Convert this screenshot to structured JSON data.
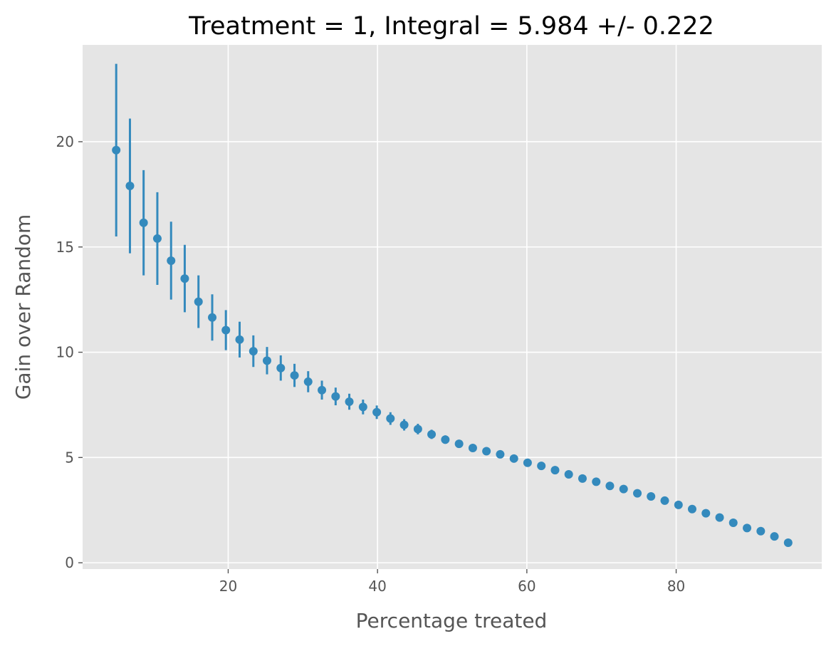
{
  "chart_data": {
    "type": "scatter",
    "title": "Treatment = 1, Integral = 5.984 +/- 0.222",
    "xlabel": "Percentage treated",
    "ylabel": "Gain over Random",
    "xlim": [
      0.5,
      99.5
    ],
    "ylim": [
      -0.3,
      24.6
    ],
    "xticks": [
      20,
      40,
      60,
      80
    ],
    "yticks": [
      0,
      5,
      10,
      15,
      20
    ],
    "grid": true,
    "style": "ggplot",
    "colors": {
      "points": "#348ABD",
      "plot_background": "#E5E5E5",
      "grid": "#FFFFFF",
      "text": "#555555",
      "title": "#000000"
    },
    "series": [
      {
        "x": [
          5.0,
          6.84,
          8.67,
          10.51,
          12.35,
          14.18,
          16.02,
          17.86,
          19.69,
          21.53,
          23.37,
          25.2,
          27.04,
          28.88,
          30.71,
          32.55,
          34.39,
          36.22,
          38.06,
          39.9,
          41.73,
          43.57,
          45.41,
          47.24,
          49.08,
          50.92,
          52.76,
          54.59,
          56.43,
          58.27,
          60.1,
          61.94,
          63.78,
          65.61,
          67.45,
          69.29,
          71.12,
          72.96,
          74.8,
          76.63,
          78.47,
          80.31,
          82.14,
          83.98,
          85.82,
          87.65,
          89.49,
          91.33,
          93.16,
          95.0
        ],
        "y": [
          19.6,
          17.9,
          16.15,
          15.4,
          14.35,
          13.5,
          12.4,
          11.65,
          11.05,
          10.6,
          10.05,
          9.6,
          9.25,
          8.9,
          8.6,
          8.2,
          7.9,
          7.65,
          7.4,
          7.15,
          6.85,
          6.55,
          6.35,
          6.1,
          5.85,
          5.65,
          5.45,
          5.3,
          5.15,
          4.95,
          4.75,
          4.6,
          4.4,
          4.2,
          4.0,
          3.85,
          3.65,
          3.5,
          3.3,
          3.15,
          2.95,
          2.75,
          2.55,
          2.35,
          2.15,
          1.9,
          1.65,
          1.5,
          1.25,
          0.95
        ],
        "yerr": [
          4.1,
          3.2,
          2.5,
          2.2,
          1.85,
          1.6,
          1.25,
          1.1,
          0.95,
          0.85,
          0.75,
          0.65,
          0.6,
          0.55,
          0.5,
          0.45,
          0.42,
          0.38,
          0.35,
          0.32,
          0.3,
          0.27,
          0.25,
          0.22,
          0.2,
          0.18,
          0.16,
          0.14,
          0.12,
          0.1,
          0.08,
          0.07,
          0.06,
          0.05,
          0.04,
          0.03,
          0.03,
          0.02,
          0.02,
          0.01,
          0.01,
          0.01,
          0.01,
          0.01,
          0.0,
          0.0,
          0.0,
          0.0,
          0.0,
          0.0
        ]
      }
    ]
  }
}
